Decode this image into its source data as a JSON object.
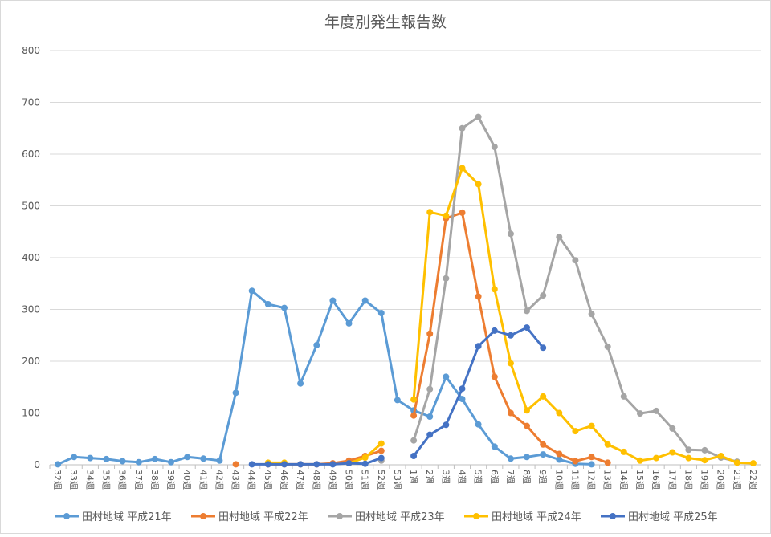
{
  "chart_data": {
    "type": "line",
    "title": "年度別発生報告数",
    "xlabel": "",
    "ylabel": "",
    "ylim": [
      0,
      800
    ],
    "yticks": [
      "0",
      "100",
      "200",
      "300",
      "400",
      "500",
      "600",
      "700",
      "800"
    ],
    "grid": true,
    "legend_position": "bottom",
    "categories": [
      "32週",
      "33週",
      "34週",
      "35週",
      "36週",
      "37週",
      "38週",
      "39週",
      "40週",
      "41週",
      "42週",
      "43週",
      "44週",
      "45週",
      "46週",
      "47週",
      "48週",
      "49週",
      "50週",
      "51週",
      "52週",
      "53週",
      "1週",
      "2週",
      "3週",
      "4週",
      "5週",
      "6週",
      "7週",
      "8週",
      "9週",
      "10週",
      "11週",
      "12週",
      "13週",
      "14週",
      "15週",
      "16週",
      "17週",
      "18週",
      "19週",
      "20週",
      "21週",
      "22週"
    ],
    "series": [
      {
        "name": "田村地域 平成21年",
        "color": "#5B9BD5",
        "values": [
          1,
          15,
          13,
          11,
          7,
          5,
          11,
          5,
          15,
          12,
          8,
          139,
          336,
          310,
          303,
          157,
          231,
          317,
          273,
          317,
          293,
          125,
          105,
          93,
          170,
          127,
          78,
          35,
          12,
          15,
          20,
          10,
          2,
          1,
          null,
          null,
          null,
          null,
          null,
          null,
          null,
          null,
          null,
          null
        ]
      },
      {
        "name": "田村地域 平成22年",
        "color": "#ED7D31",
        "values": [
          null,
          null,
          null,
          null,
          null,
          null,
          null,
          null,
          null,
          null,
          null,
          1,
          null,
          1,
          1,
          1,
          1,
          3,
          8,
          17,
          27,
          null,
          95,
          253,
          476,
          487,
          325,
          170,
          100,
          75,
          39,
          21,
          7,
          15,
          4,
          null,
          null,
          null,
          null,
          null,
          null,
          null,
          null,
          null
        ]
      },
      {
        "name": "田村地域 平成23年",
        "color": "#A5A5A5",
        "values": [
          null,
          null,
          null,
          null,
          null,
          null,
          null,
          null,
          null,
          null,
          null,
          null,
          null,
          null,
          null,
          null,
          null,
          null,
          null,
          null,
          8,
          null,
          47,
          146,
          360,
          650,
          672,
          614,
          446,
          297,
          327,
          440,
          395,
          291,
          228,
          132,
          99,
          104,
          70,
          29,
          28,
          14,
          6,
          null
        ]
      },
      {
        "name": "田村地域 平成24年",
        "color": "#FFC000",
        "values": [
          null,
          null,
          null,
          null,
          null,
          null,
          null,
          null,
          null,
          null,
          null,
          null,
          null,
          4,
          4,
          null,
          null,
          null,
          3,
          14,
          41,
          null,
          126,
          488,
          481,
          573,
          542,
          339,
          196,
          105,
          132,
          100,
          65,
          75,
          39,
          25,
          8,
          13,
          24,
          13,
          9,
          17,
          4,
          3
        ]
      },
      {
        "name": "田村地域 平成25年",
        "color": "#4472C4",
        "values": [
          null,
          null,
          null,
          null,
          null,
          null,
          null,
          null,
          null,
          null,
          null,
          null,
          1,
          1,
          1,
          1,
          1,
          1,
          3,
          2,
          13,
          null,
          17,
          58,
          77,
          147,
          229,
          259,
          250,
          265,
          226,
          null,
          null,
          null,
          null,
          null,
          null,
          null,
          null,
          null,
          null,
          null,
          null,
          null
        ]
      }
    ]
  }
}
